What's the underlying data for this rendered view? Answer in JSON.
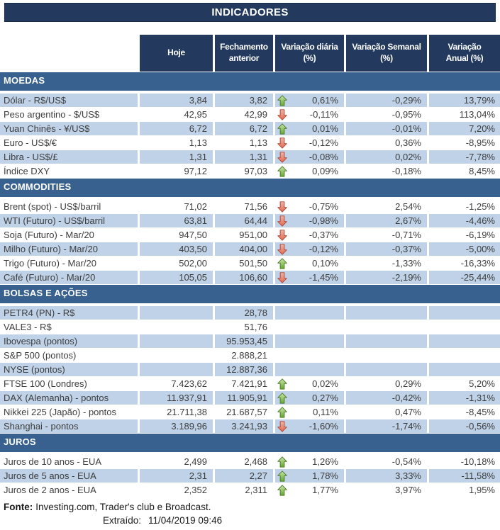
{
  "title": "INDICADORES",
  "columns": [
    [
      "Hoje"
    ],
    [
      "Fechamento",
      "anterior"
    ],
    [
      "Variação diária",
      "(%)"
    ],
    [
      "Variação Semanal",
      "(%)"
    ],
    [
      "Variação",
      "Anual (%)"
    ]
  ],
  "colors": {
    "header_navy": "#233A5E",
    "section_blue": "#38618F",
    "row_stripe": "#BFD2E8",
    "text": "#3D3D3D",
    "arrow_green": "#63A931",
    "arrow_red": "#DD6C52"
  },
  "icons": {
    "up": "up-arrow-icon",
    "down": "down-arrow-icon"
  },
  "sections": [
    {
      "label": "MOEDAS",
      "rows": [
        {
          "label": "Dólar - R$/US$",
          "hoje": "3,84",
          "fechamento": "3,82",
          "arrow": "up",
          "diaria": "0,61%",
          "semanal": "-0,29%",
          "anual": "13,79%"
        },
        {
          "label": "Peso argentino - $/US$",
          "hoje": "42,95",
          "fechamento": "42,99",
          "arrow": "down",
          "diaria": "-0,11%",
          "semanal": "-0,95%",
          "anual": "113,04%"
        },
        {
          "label": "Yuan Chinês - ¥/US$",
          "hoje": "6,72",
          "fechamento": "6,72",
          "arrow": "up",
          "diaria": "0,01%",
          "semanal": "-0,01%",
          "anual": "7,20%"
        },
        {
          "label": "Euro - US$/€",
          "hoje": "1,13",
          "fechamento": "1,13",
          "arrow": "down",
          "diaria": "-0,12%",
          "semanal": "0,36%",
          "anual": "-8,95%"
        },
        {
          "label": "Libra - US$/£",
          "hoje": "1,31",
          "fechamento": "1,31",
          "arrow": "down",
          "diaria": "-0,08%",
          "semanal": "0,02%",
          "anual": "-7,78%"
        },
        {
          "label": "Índice DXY",
          "hoje": "97,12",
          "fechamento": "97,03",
          "arrow": "up",
          "diaria": "0,09%",
          "semanal": "-0,18%",
          "anual": "8,45%"
        }
      ]
    },
    {
      "label": "COMMODITIES",
      "rows": [
        {
          "label": "Brent (spot) - US$/barril",
          "hoje": "71,02",
          "fechamento": "71,56",
          "arrow": "down",
          "diaria": "-0,75%",
          "semanal": "2,54%",
          "anual": "-1,25%"
        },
        {
          "label": "WTI (Futuro) - US$/barril",
          "hoje": "63,81",
          "fechamento": "64,44",
          "arrow": "down",
          "diaria": "-0,98%",
          "semanal": "2,67%",
          "anual": "-4,46%"
        },
        {
          "label": "Soja (Futuro) - Mar/20",
          "hoje": "947,50",
          "fechamento": "951,00",
          "arrow": "down",
          "diaria": "-0,37%",
          "semanal": "-0,71%",
          "anual": "-6,19%"
        },
        {
          "label": "Milho (Futuro) - Mar/20",
          "hoje": "403,50",
          "fechamento": "404,00",
          "arrow": "down",
          "diaria": "-0,12%",
          "semanal": "-0,37%",
          "anual": "-5,00%"
        },
        {
          "label": "Trigo (Futuro) - Mar/20",
          "hoje": "502,00",
          "fechamento": "501,50",
          "arrow": "up",
          "diaria": "0,10%",
          "semanal": "-1,33%",
          "anual": "-16,33%"
        },
        {
          "label": "Café (Futuro) - Mar/20",
          "hoje": "105,05",
          "fechamento": "106,60",
          "arrow": "down",
          "diaria": "-1,45%",
          "semanal": "-2,19%",
          "anual": "-25,44%"
        }
      ]
    },
    {
      "label": "BOLSAS E AÇÕES",
      "rows": [
        {
          "label": "PETR4 (PN) - R$",
          "hoje": "",
          "fechamento": "28,78",
          "arrow": null,
          "diaria": "",
          "semanal": "",
          "anual": ""
        },
        {
          "label": "VALE3 - R$",
          "hoje": "",
          "fechamento": "51,76",
          "arrow": null,
          "diaria": "",
          "semanal": "",
          "anual": ""
        },
        {
          "label": "Ibovespa (pontos)",
          "hoje": "",
          "fechamento": "95.953,45",
          "arrow": null,
          "diaria": "",
          "semanal": "",
          "anual": ""
        },
        {
          "label": "S&P 500 (pontos)",
          "hoje": "",
          "fechamento": "2.888,21",
          "arrow": null,
          "diaria": "",
          "semanal": "",
          "anual": ""
        },
        {
          "label": "NYSE (pontos)",
          "hoje": "",
          "fechamento": "12.887,36",
          "arrow": null,
          "diaria": "",
          "semanal": "",
          "anual": ""
        },
        {
          "label": "FTSE 100 (Londres)",
          "hoje": "7.423,62",
          "fechamento": "7.421,91",
          "arrow": "up",
          "diaria": "0,02%",
          "semanal": "0,29%",
          "anual": "5,20%"
        },
        {
          "label": "DAX (Alemanha) - pontos",
          "hoje": "11.937,91",
          "fechamento": "11.905,91",
          "arrow": "up",
          "diaria": "0,27%",
          "semanal": "-0,42%",
          "anual": "-1,31%"
        },
        {
          "label": "Nikkei 225 (Japão) - pontos",
          "hoje": "21.711,38",
          "fechamento": "21.687,57",
          "arrow": "up",
          "diaria": "0,11%",
          "semanal": "0,47%",
          "anual": "-8,45%"
        },
        {
          "label": "Shanghai - pontos",
          "hoje": "3.189,96",
          "fechamento": "3.241,93",
          "arrow": "down",
          "diaria": "-1,60%",
          "semanal": "-1,74%",
          "anual": "-0,56%"
        }
      ]
    },
    {
      "label": "JUROS",
      "rows": [
        {
          "label": "Juros de 10 anos - EUA",
          "hoje": "2,499",
          "fechamento": "2,468",
          "arrow": "up",
          "diaria": "1,26%",
          "semanal": "-0,54%",
          "anual": "-10,18%"
        },
        {
          "label": "Juros de 5 anos - EUA",
          "hoje": "2,31",
          "fechamento": "2,27",
          "arrow": "up",
          "diaria": "1,78%",
          "semanal": "3,33%",
          "anual": "-11,58%"
        },
        {
          "label": "Juros de 2 anos - EUA",
          "hoje": "2,352",
          "fechamento": "2,311",
          "arrow": "up",
          "diaria": "1,77%",
          "semanal": "3,97%",
          "anual": "1,95%"
        }
      ]
    }
  ],
  "footer": {
    "fonte_label": "Fonte:",
    "fonte_text": "Investing.com, Trader's club e Broadcast.",
    "extraido_label": "Extraído:",
    "extraido_value": "11/04/2019 09:46"
  }
}
